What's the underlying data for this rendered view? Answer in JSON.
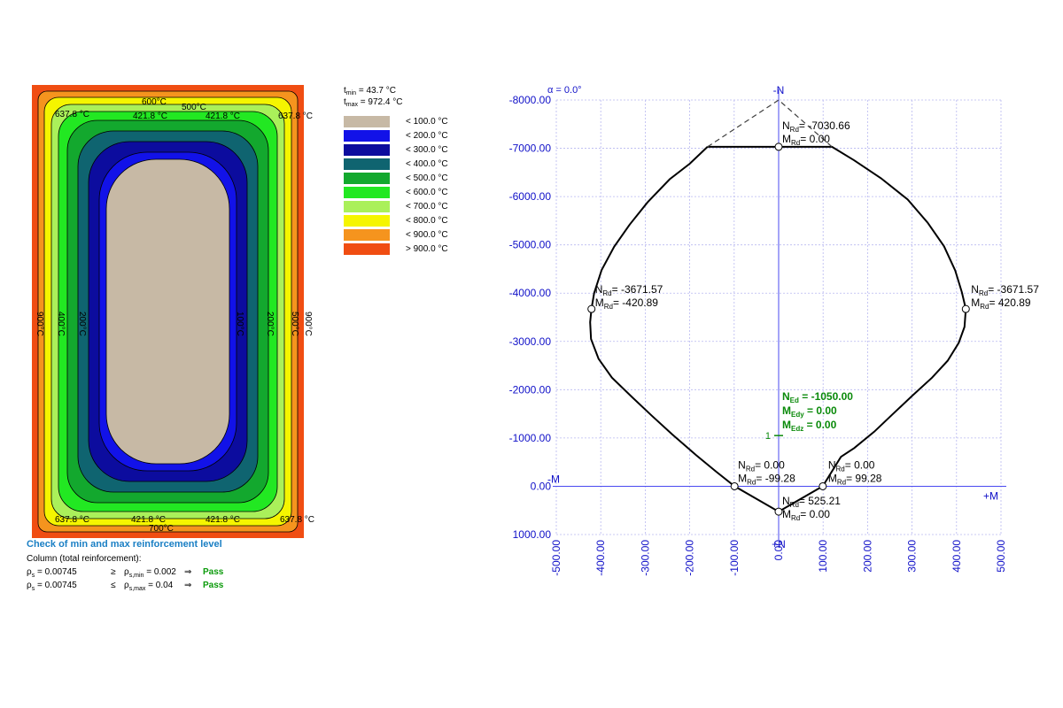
{
  "heatmap": {
    "contour_labels_top": [
      "600°C",
      "500°C",
      "637.8 °C",
      "421.8 °C",
      "421.8 °C",
      "637.8 °C"
    ],
    "contour_labels_bottom": [
      "637.8 °C",
      "421.8 °C",
      "700°C",
      "421.8 °C",
      "637.8 °C"
    ],
    "contour_labels_side": [
      "900°C",
      "400°C",
      "200°C",
      "100°C",
      "200°C",
      "500°C",
      "900°C"
    ]
  },
  "legend": {
    "tmin_label": "t",
    "tmin_sub": "min",
    "tmin_value": " = 43.7 °C",
    "tmax_label": "t",
    "tmax_sub": "max",
    "tmax_value": " = 972.4 °C",
    "items": [
      {
        "label": "< 100.0 °C",
        "color": "#c7b9a5"
      },
      {
        "label": "< 200.0 °C",
        "color": "#1212e8"
      },
      {
        "label": "< 300.0 °C",
        "color": "#0c0c9e"
      },
      {
        "label": "< 400.0 °C",
        "color": "#0f6470"
      },
      {
        "label": "< 500.0 °C",
        "color": "#13a82e"
      },
      {
        "label": "< 600.0 °C",
        "color": "#22e822"
      },
      {
        "label": "< 700.0 °C",
        "color": "#aaf05a"
      },
      {
        "label": "< 800.0 °C",
        "color": "#f5f500"
      },
      {
        "label": "< 900.0 °C",
        "color": "#f5941e"
      },
      {
        "label": "> 900.0 °C",
        "color": "#f04d12"
      }
    ]
  },
  "check": {
    "heading": "Check of min and max reinforcement level",
    "subheading": "Column (total reinforcement):",
    "rows": [
      {
        "sym": "ρ",
        "sub": "s",
        "value": " = 0.00745",
        "op": "≥",
        "limit_sym": "ρ",
        "limit_sub": "s,min",
        "limit_value": " = 0.002",
        "arrow": "⇒",
        "result": "Pass"
      },
      {
        "sym": "ρ",
        "sub": "s",
        "value": " = 0.00745",
        "op": "≤",
        "limit_sym": "ρ",
        "limit_sub": "s,max",
        "limit_value": " = 0.04",
        "arrow": "⇒",
        "result": "Pass"
      }
    ]
  },
  "chart_data": {
    "type": "line",
    "title": "α = 0.0°",
    "xlabel_neg": "-M",
    "xlabel_pos": "+M",
    "ylabel_neg": "-N",
    "ylabel_pos": "+N",
    "xlim": [
      -500,
      500
    ],
    "ylim": [
      -8000,
      1000
    ],
    "x_ticks": [
      "-500.00",
      "-400.00",
      "-300.00",
      "-200.00",
      "-100.00",
      "0.00",
      "100.00",
      "200.00",
      "300.00",
      "400.00",
      "500.00"
    ],
    "y_ticks": [
      "-8000.00",
      "-7000.00",
      "-6000.00",
      "-5000.00",
      "-4000.00",
      "-3000.00",
      "-2000.00",
      "-1000.00",
      "0.00",
      "1000.00"
    ],
    "grid": true,
    "series": [
      {
        "name": "",
        "style": "solid",
        "color": "#000000",
        "points": [
          [
            -160,
            -7030
          ],
          [
            120,
            -7030
          ],
          [
            170,
            -6750
          ],
          [
            230,
            -6380
          ],
          [
            290,
            -5940
          ],
          [
            335,
            -5460
          ],
          [
            372,
            -4970
          ],
          [
            397,
            -4470
          ],
          [
            412,
            -4020
          ],
          [
            420.89,
            -3671.57
          ],
          [
            418,
            -3300
          ],
          [
            405,
            -2970
          ],
          [
            380,
            -2600
          ],
          [
            345,
            -2250
          ],
          [
            300,
            -1870
          ],
          [
            255,
            -1480
          ],
          [
            215,
            -1130
          ],
          [
            170,
            -790
          ],
          [
            140,
            -610
          ],
          [
            99.28,
            0
          ],
          [
            0,
            525.21
          ],
          [
            -99.28,
            0
          ],
          [
            -140,
            -300
          ],
          [
            -185,
            -640
          ],
          [
            -240,
            -1080
          ],
          [
            -285,
            -1460
          ],
          [
            -330,
            -1850
          ],
          [
            -375,
            -2250
          ],
          [
            -405,
            -2640
          ],
          [
            -422,
            -3050
          ],
          [
            -424,
            -3400
          ],
          [
            -420.89,
            -3671.57
          ],
          [
            -415,
            -4000
          ],
          [
            -398,
            -4480
          ],
          [
            -370,
            -4960
          ],
          [
            -335,
            -5420
          ],
          [
            -295,
            -5880
          ],
          [
            -245,
            -6360
          ],
          [
            -200,
            -6680
          ],
          [
            -160,
            -7030
          ]
        ]
      },
      {
        "name": "",
        "style": "dashed",
        "color": "#404040",
        "points": [
          [
            -160,
            -7030
          ],
          [
            0,
            -8000
          ],
          [
            120,
            -7030
          ]
        ]
      }
    ],
    "annotated_points": [
      {
        "x": 0,
        "y": -7030.66,
        "line1": "N",
        "line1_sub": "Rd",
        "line1_value": "= -7030.66",
        "line2": "M",
        "line2_sub": "Rd",
        "line2_value": "= 0.00"
      },
      {
        "x": -420.89,
        "y": -3671.57,
        "line1": "N",
        "line1_sub": "Rd",
        "line1_value": "= -3671.57",
        "line2": "M",
        "line2_sub": "Rd",
        "line2_value": "= -420.89"
      },
      {
        "x": 420.89,
        "y": -3671.57,
        "line1": "N",
        "line1_sub": "Rd",
        "line1_value": "= -3671.57",
        "line2": "M",
        "line2_sub": "Rd",
        "line2_value": "= 420.89"
      },
      {
        "x": -99.28,
        "y": 0,
        "line1": "N",
        "line1_sub": "Rd",
        "line1_value": "= 0.00",
        "line2": "M",
        "line2_sub": "Rd",
        "line2_value": "= -99.28"
      },
      {
        "x": 99.28,
        "y": 0,
        "line1": "N",
        "line1_sub": "Rd",
        "line1_value": "= 0.00",
        "line2": "M",
        "line2_sub": "Rd",
        "line2_value": "= 99.28"
      },
      {
        "x": 0,
        "y": 525.21,
        "line1": "N",
        "line1_sub": "Rd",
        "line1_value": "= 525.21",
        "line2": "M",
        "line2_sub": "Rd",
        "line2_value": "= 0.00"
      }
    ],
    "design_load": {
      "x": 0,
      "y": -1050,
      "marker_label": "1",
      "lines": [
        {
          "sym": "N",
          "sub": "Ed",
          "value": " = -1050.00"
        },
        {
          "sym": "M",
          "sub": "Edy",
          "value": " = 0.00"
        },
        {
          "sym": "M",
          "sub": "Edz",
          "value": " = 0.00"
        }
      ],
      "color": "#0a8a0a"
    },
    "axis_color": "#4a4af0",
    "grid_color": "#b8b8f0",
    "tick_color": "#1010c8"
  }
}
